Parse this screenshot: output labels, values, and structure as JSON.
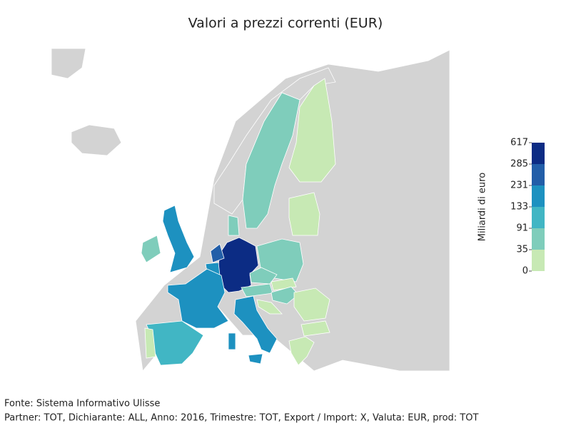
{
  "title": "Valori a prezzi correnti (EUR)",
  "legend": {
    "label": "Miliardi di euro",
    "ticks": [
      0,
      35,
      91,
      133,
      231,
      285,
      617
    ],
    "colors": [
      "#c7e9b4",
      "#7fcdbb",
      "#41b6c4",
      "#1d91c0",
      "#225ea8",
      "#0c2c84"
    ]
  },
  "footer": [
    "Fonte: Sistema Informativo Ulisse",
    "Partner: TOT, Dichiarante: ALL, Anno: 2016, Trimestre: TOT, Export / Import: X, Valuta: EUR, prod: TOT"
  ]
}
